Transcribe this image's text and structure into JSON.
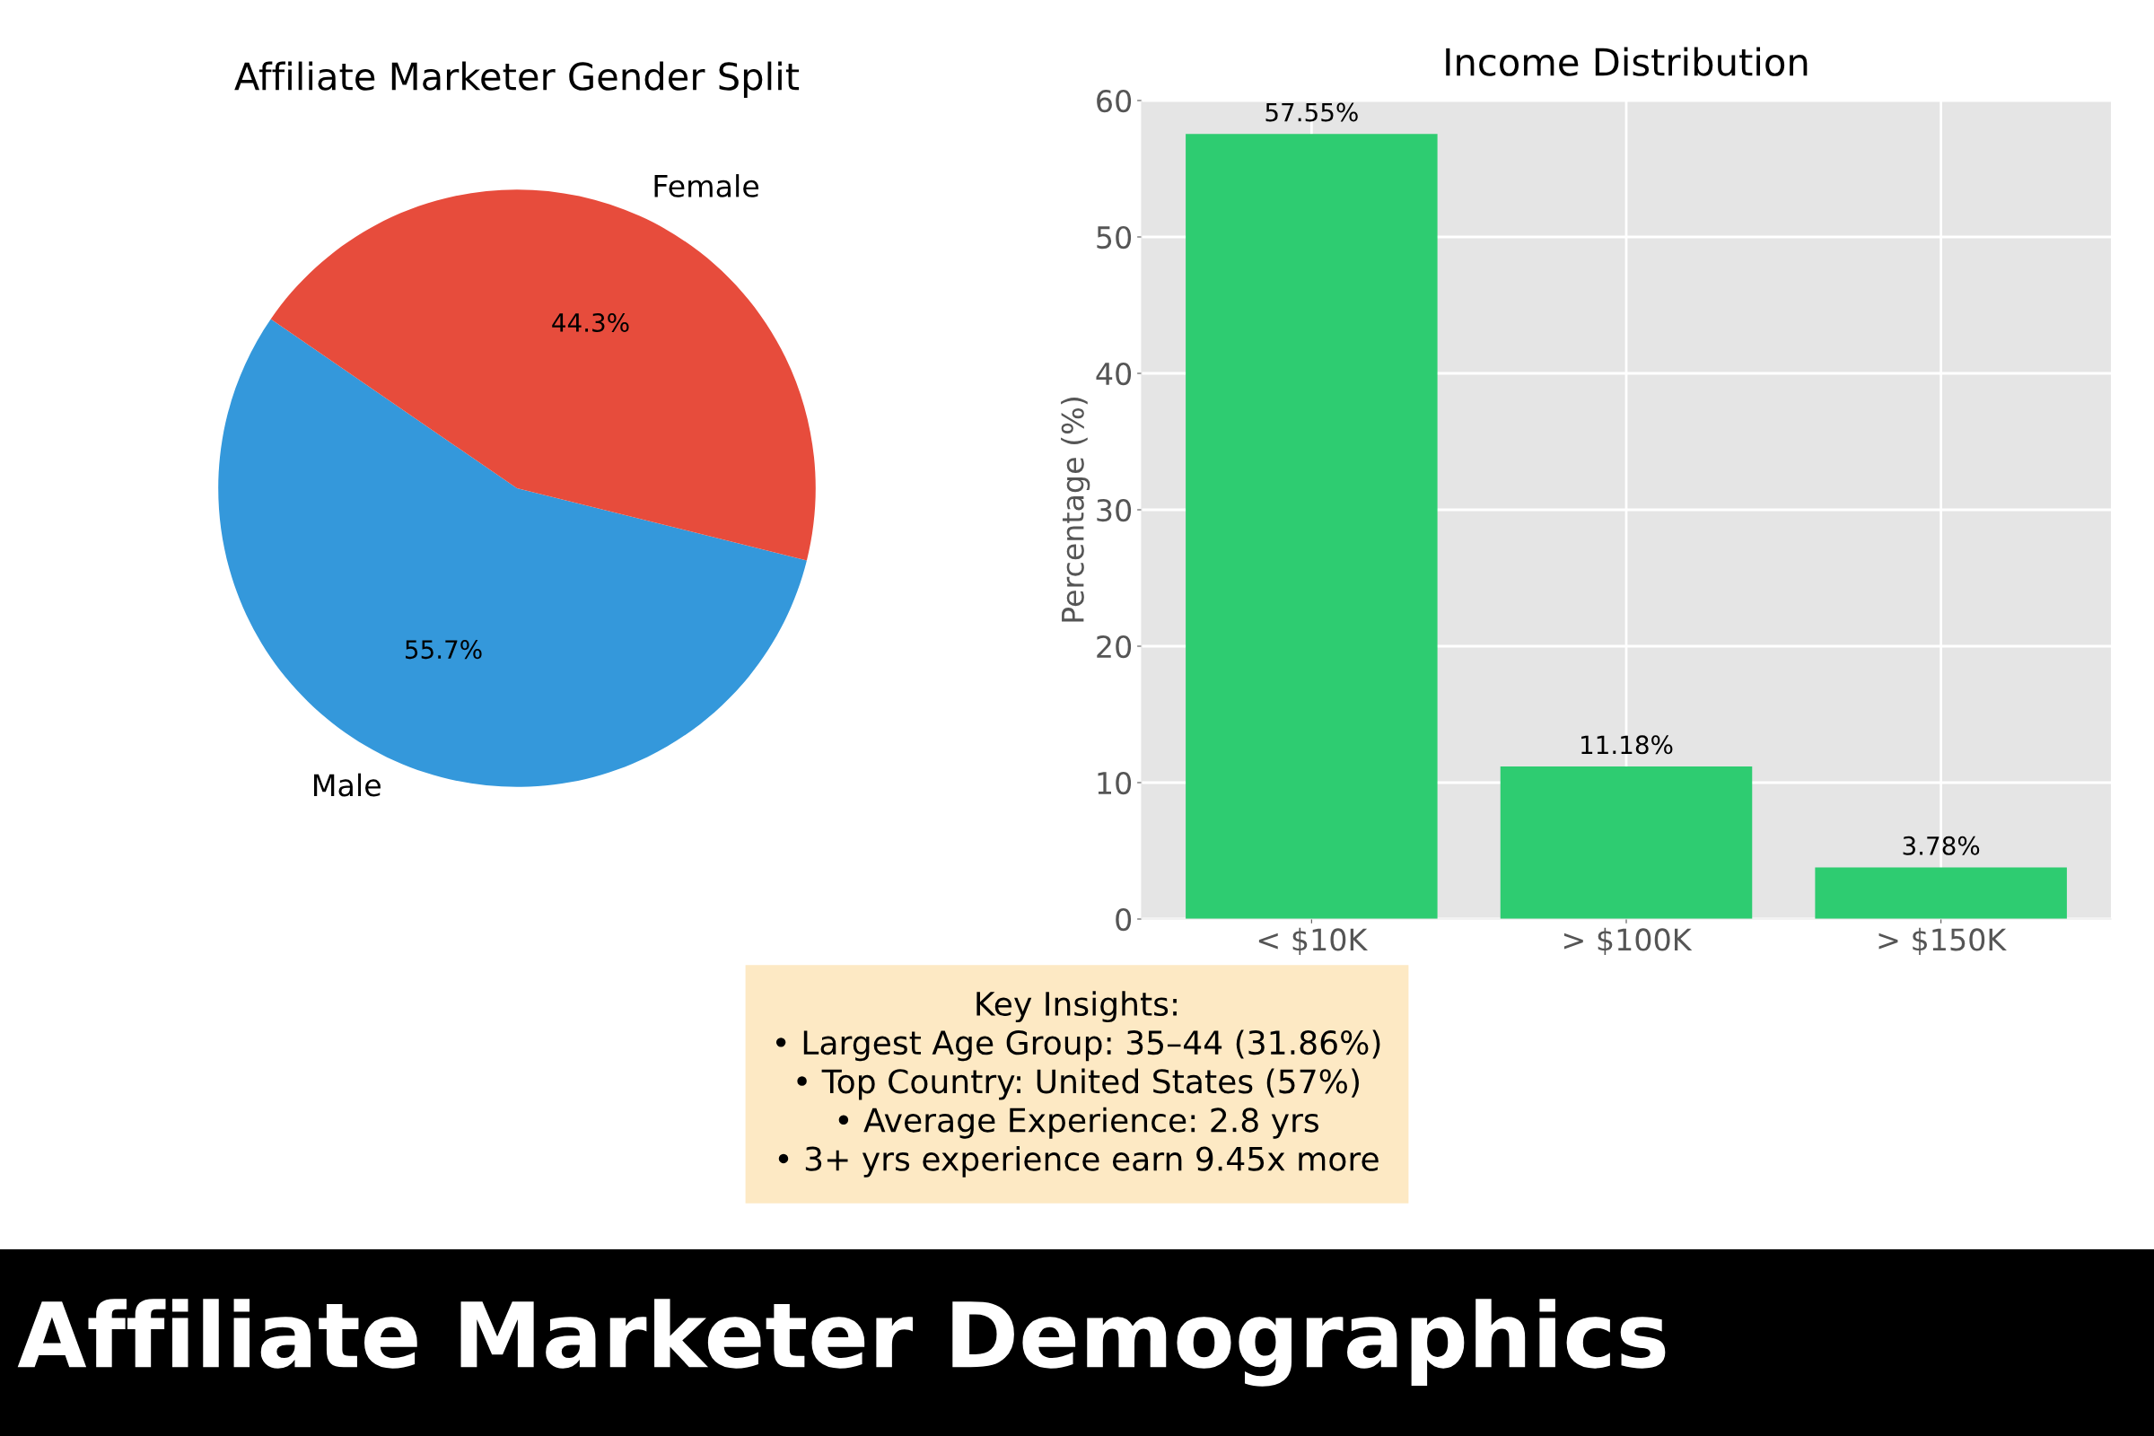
{
  "chart_data": [
    {
      "type": "pie",
      "title": "Affiliate Marketer Gender Split",
      "categories": [
        "Male",
        "Female"
      ],
      "values": [
        55.7,
        44.3
      ],
      "colors": [
        "#3498db",
        "#e74c3c"
      ],
      "value_labels": [
        "55.7%",
        "44.3%"
      ]
    },
    {
      "type": "bar",
      "title": "Income Distribution",
      "ylabel": "Percentage (%)",
      "categories": [
        "< $10K",
        "> $100K",
        "> $150K"
      ],
      "values": [
        57.55,
        11.18,
        3.78
      ],
      "color": "#2ecc71",
      "value_labels": [
        "57.55%",
        "11.18%",
        "3.78%"
      ],
      "ylim": [
        0,
        60
      ],
      "yticks": [
        0,
        10,
        20,
        30,
        40,
        50,
        60
      ],
      "grid": true,
      "annotations": [
        "Key Insights:\n• Largest Age Group: 35–44 (31.86%)\n• Top Country: United States (57%)\n• Average Experience: 2.8 yrs\n• 3+ yrs experience earn 9.45x more",
        "Affiliate Marketer Demographics"
      ]
    }
  ]
}
